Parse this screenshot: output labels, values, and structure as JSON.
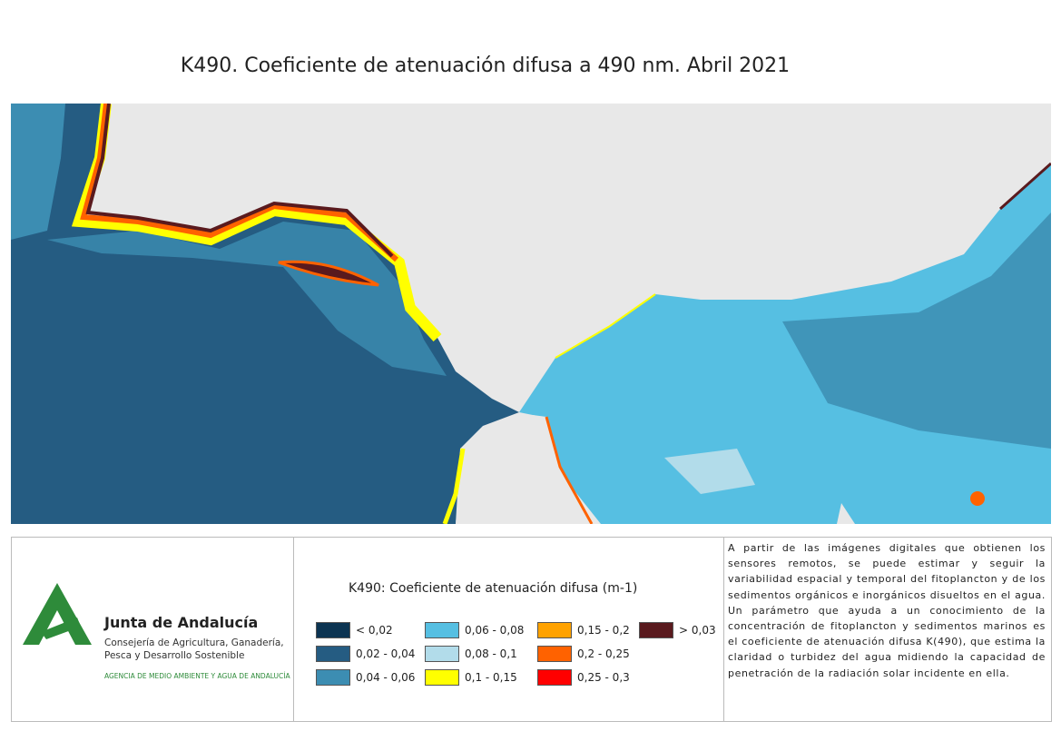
{
  "title": "K490. Coeficiente de atenuación difusa a 490 nm. Abril 2021",
  "legend": {
    "title": "K490: Coeficiente de atenuación difusa (m-1)",
    "items": [
      {
        "label": "< 0,02",
        "color": "#0c3452"
      },
      {
        "label": "0,02 - 0,04",
        "color": "#255c82"
      },
      {
        "label": "0,04 - 0,06",
        "color": "#3c8db2"
      },
      {
        "label": "0,06 - 0,08",
        "color": "#56bfe2"
      },
      {
        "label": "0,08 - 0,1",
        "color": "#b2dcea"
      },
      {
        "label": "0,1 - 0,15",
        "color": "#ffff00"
      },
      {
        "label": "0,15 - 0,2",
        "color": "#ffa200"
      },
      {
        "label": "0,2 - 0,25",
        "color": "#ff6200"
      },
      {
        "label": "0,25 - 0,3",
        "color": "#ff0000"
      },
      {
        "label": "> 0,03",
        "color": "#5a1a1e"
      }
    ]
  },
  "logo": {
    "name": "Junta de Andalucía",
    "department": [
      "Consejería de Agricultura, Ganadería,",
      "Pesca y Desarrollo Sostenible"
    ],
    "agency": "AGENCIA DE MEDIO AMBIENTE Y AGUA DE ANDALUCÍA"
  },
  "description": "A partir de las imágenes digitales que obtienen los sensores remotos, se puede estimar y seguir la variabilidad espacial y temporal del fitoplancton y de los sedimentos orgánicos e inorgánicos disueltos en el agua. Un parámetro que ayuda a un conocimiento de la concentración de fitoplancton y sedimentos marinos es el coeficiente de atenuación difusa K(490), que estima la claridad o turbidez del agua midiendo la capacidad de penetración de la radiación solar incidente en ella."
}
